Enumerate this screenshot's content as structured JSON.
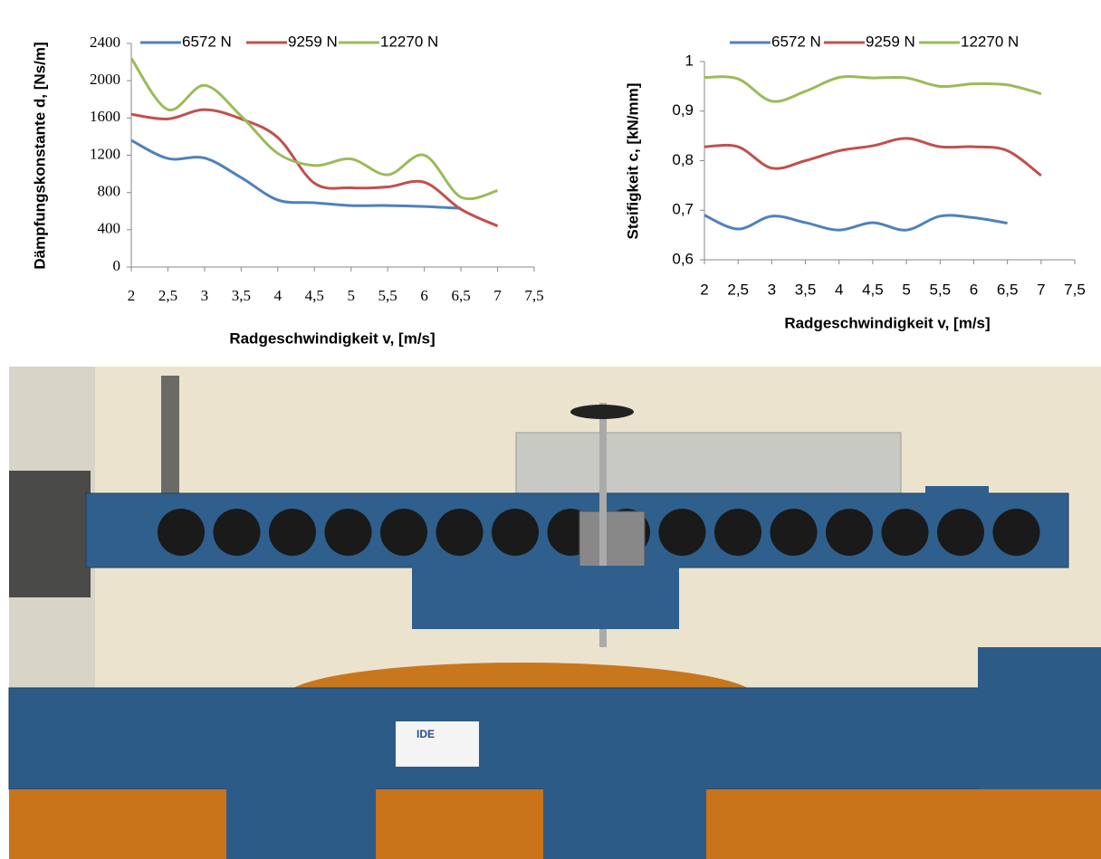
{
  "chart_data": [
    {
      "type": "line",
      "ylabel": "Dämpfungskonstante d, [Ns/m]",
      "xlabel": "Radgeschwindigkeit v, [m/s]",
      "x": [
        2,
        2.5,
        3,
        3.5,
        4,
        4.5,
        5,
        5.5,
        6,
        6.5,
        7
      ],
      "xlim": [
        2,
        7.5
      ],
      "xticks": [
        2,
        {
          "value": 2.5,
          "label": "2,5"
        },
        3,
        {
          "value": 3.5,
          "label": "3,5"
        },
        4,
        {
          "value": 4.5,
          "label": "4,5"
        },
        5,
        {
          "value": 5.5,
          "label": "5,5"
        },
        6,
        {
          "value": 6.5,
          "label": "6,5"
        },
        7,
        {
          "value": 7.5,
          "label": "7,5"
        }
      ],
      "ylim": [
        0,
        2400
      ],
      "yticks": [
        0,
        400,
        800,
        1200,
        1600,
        2000,
        2400
      ],
      "grid": false,
      "legend": "top",
      "series": [
        {
          "name": "6572 N",
          "color": "#4f81bd",
          "values": [
            1360,
            1165,
            1170,
            960,
            720,
            690,
            660,
            660,
            650,
            630,
            null
          ]
        },
        {
          "name": "9259 N",
          "color": "#c0504d",
          "values": [
            1640,
            1590,
            1690,
            1590,
            1390,
            900,
            850,
            860,
            910,
            620,
            440
          ]
        },
        {
          "name": "12270 N",
          "color": "#9bbb59",
          "values": [
            2240,
            1690,
            1950,
            1620,
            1220,
            1090,
            1160,
            990,
            1200,
            750,
            820
          ]
        }
      ]
    },
    {
      "type": "line",
      "ylabel": "Steifigkeit c, [kN/mm]",
      "xlabel": "Radgeschwindigkeit v, [m/s]",
      "x": [
        2,
        2.5,
        3,
        3.5,
        4,
        4.5,
        5,
        5.5,
        6,
        6.5,
        7
      ],
      "xlim": [
        2,
        7.5
      ],
      "xticks": [
        2,
        {
          "value": 2.5,
          "label": "2,5"
        },
        3,
        {
          "value": 3.5,
          "label": "3,5"
        },
        4,
        {
          "value": 4.5,
          "label": "4,5"
        },
        5,
        {
          "value": 5.5,
          "label": "5,5"
        },
        6,
        {
          "value": 6.5,
          "label": "6,5"
        },
        7,
        {
          "value": 7.5,
          "label": "7,5"
        }
      ],
      "ylim": [
        0.6,
        1
      ],
      "yticks": [
        {
          "value": 0.6,
          "label": "0,6"
        },
        {
          "value": 0.7,
          "label": "0,7"
        },
        {
          "value": 0.8,
          "label": "0,8"
        },
        {
          "value": 0.9,
          "label": "0,9"
        },
        1
      ],
      "grid": false,
      "legend": "top",
      "series": [
        {
          "name": "6572 N",
          "color": "#4f81bd",
          "values": [
            0.69,
            0.662,
            0.688,
            0.675,
            0.66,
            0.675,
            0.66,
            0.688,
            0.685,
            0.674,
            null
          ]
        },
        {
          "name": "9259 N",
          "color": "#c0504d",
          "values": [
            0.828,
            0.828,
            0.785,
            0.8,
            0.82,
            0.83,
            0.845,
            0.828,
            0.828,
            0.82,
            0.77
          ]
        },
        {
          "name": "12270 N",
          "color": "#9bbb59",
          "values": [
            0.968,
            0.965,
            0.92,
            0.94,
            0.968,
            0.967,
            0.967,
            0.95,
            0.955,
            0.953,
            0.935
          ]
        }
      ]
    }
  ],
  "photo": {
    "sign": "IDE"
  }
}
